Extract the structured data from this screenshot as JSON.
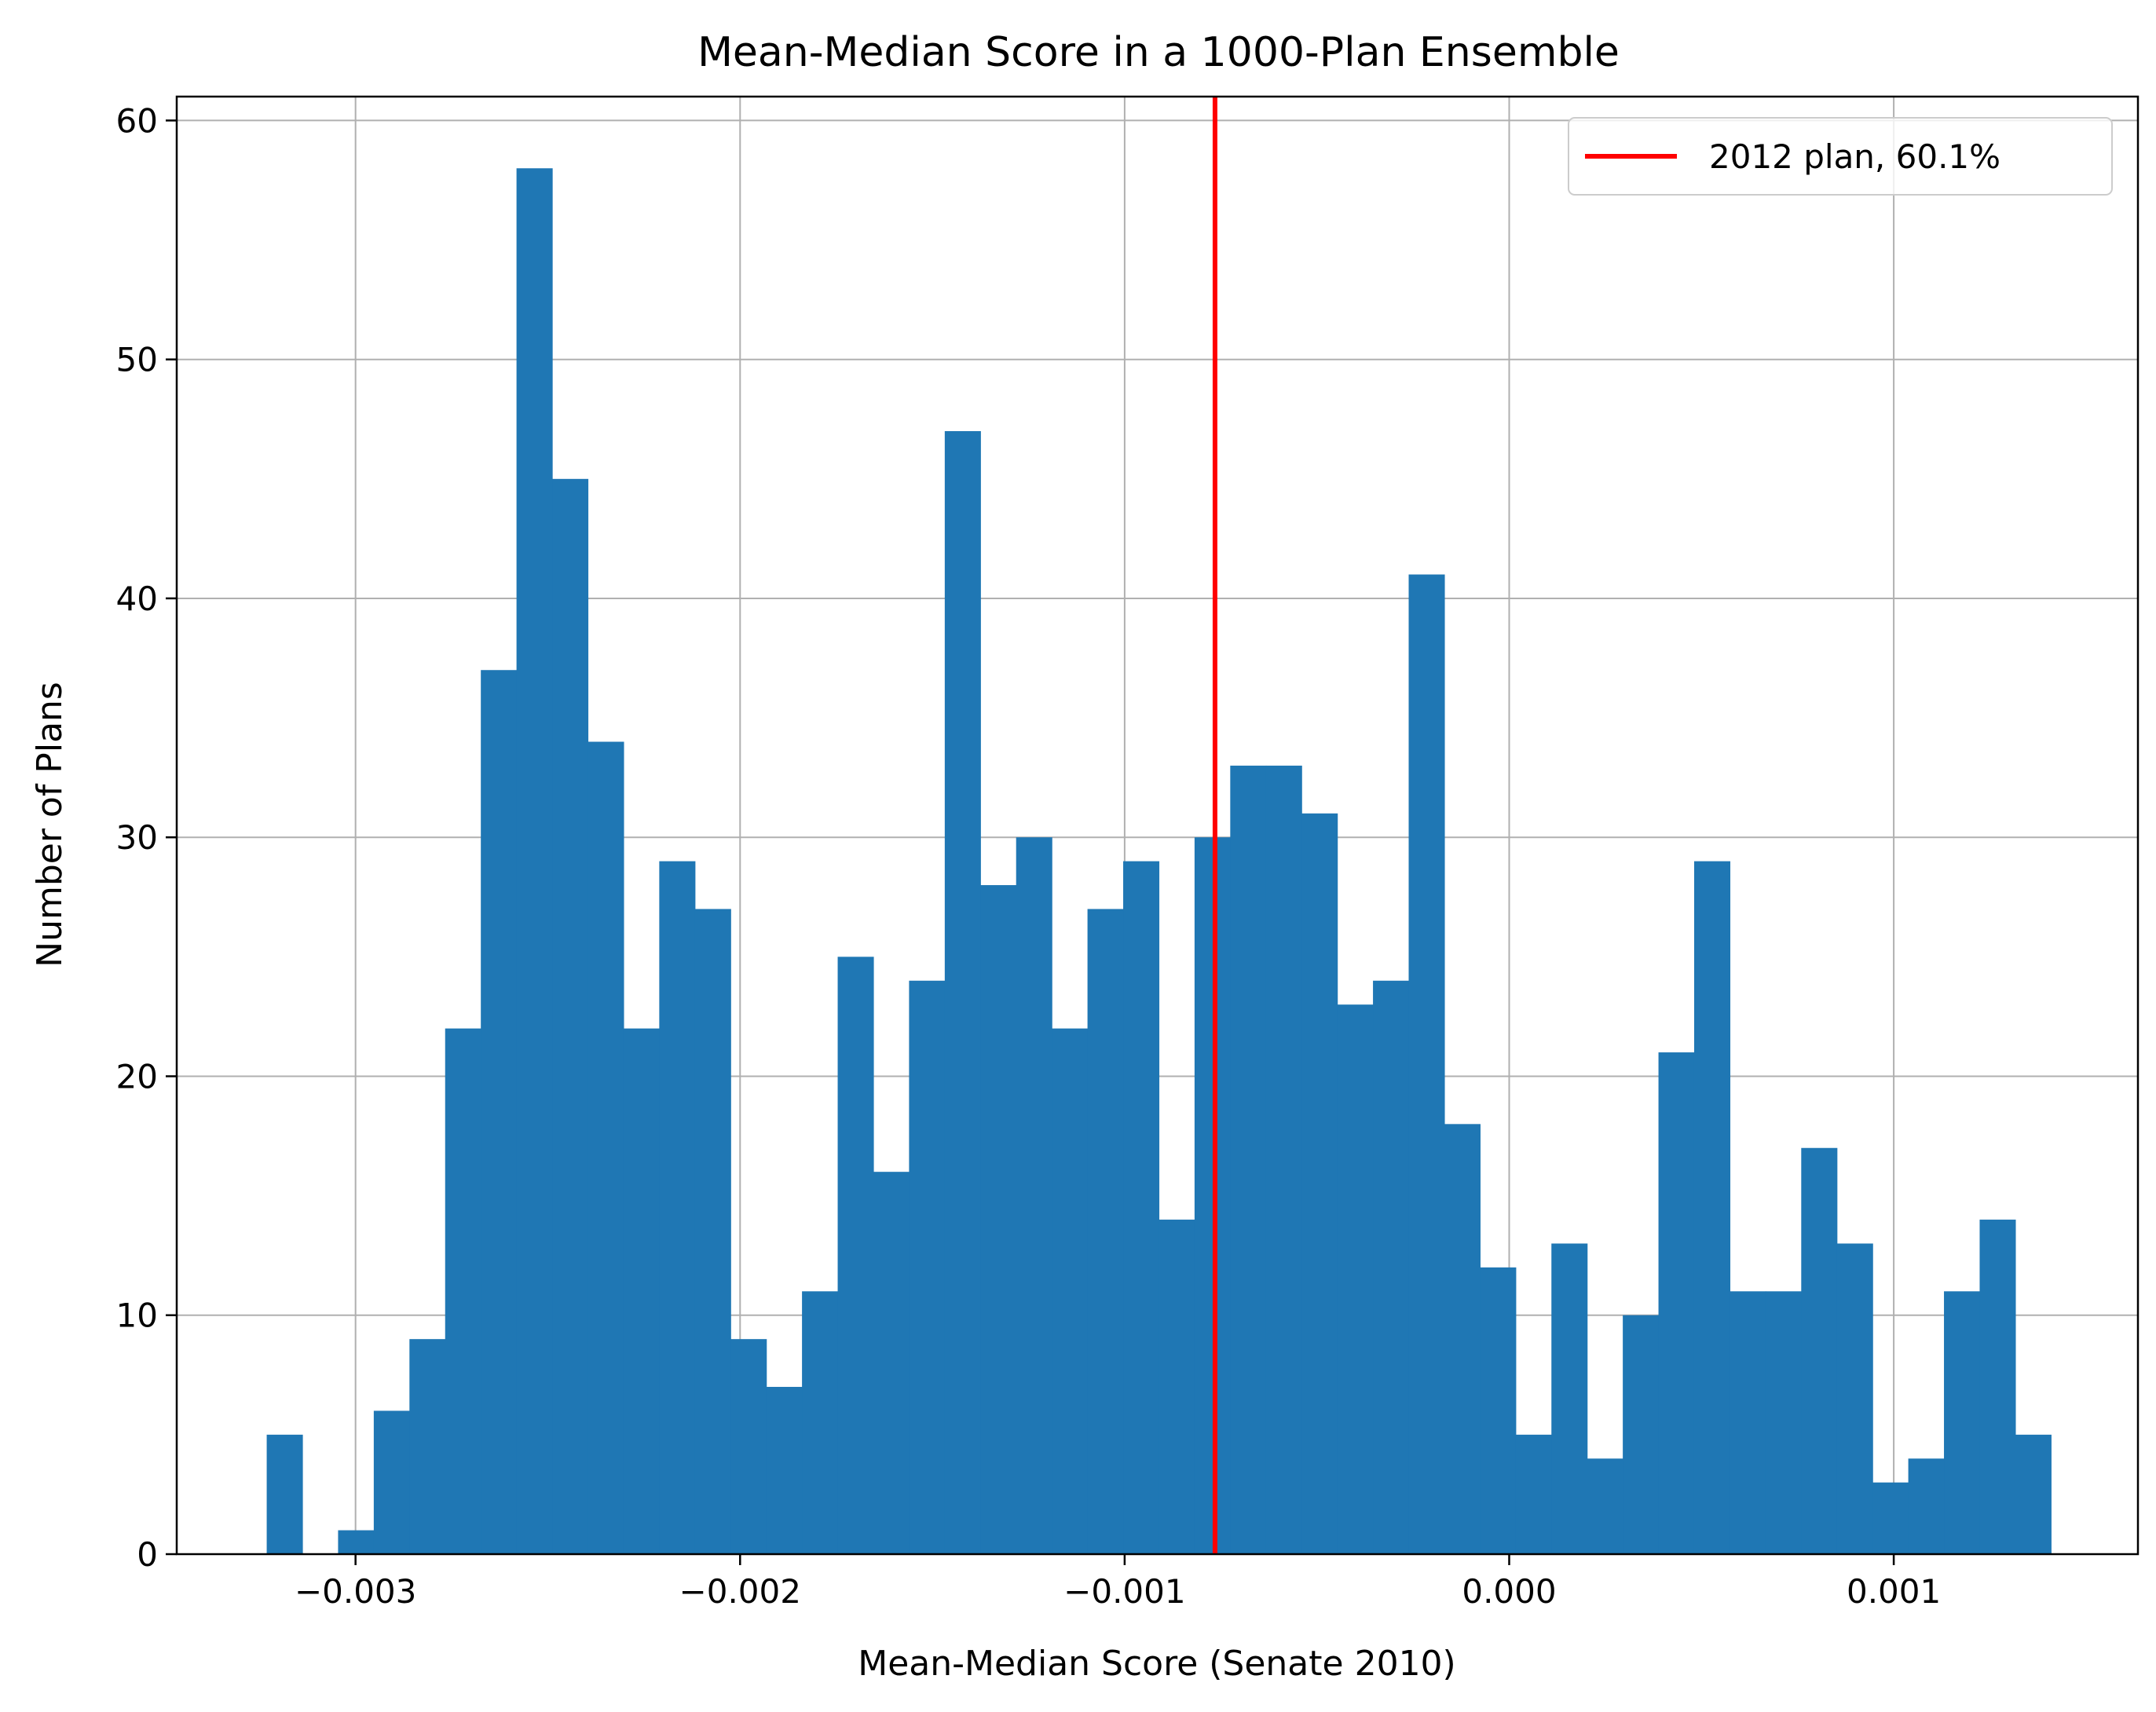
{
  "chart_data": {
    "type": "bar",
    "title": "Mean-Median Score in a 1000-Plan Ensemble",
    "xlabel": "Mean-Median Score (Senate 2010)",
    "ylabel": "Number of Plans",
    "xlim": [
      -0.003465,
      0.001635
    ],
    "ylim": [
      0,
      61
    ],
    "grid": true,
    "xticks": [
      -0.003,
      -0.002,
      -0.001,
      0.0,
      0.001
    ],
    "xtick_labels": [
      "−0.003",
      "−0.002",
      "−0.001",
      "0.000",
      "0.001"
    ],
    "yticks": [
      0,
      10,
      20,
      30,
      40,
      50,
      60
    ],
    "ytick_labels": [
      "0",
      "10",
      "20",
      "30",
      "40",
      "50",
      "60"
    ],
    "bin_start": -0.003231,
    "bin_width": 9.28e-05,
    "values": [
      5,
      0,
      1,
      6,
      9,
      22,
      37,
      58,
      45,
      34,
      22,
      29,
      27,
      9,
      7,
      11,
      25,
      16,
      24,
      47,
      28,
      30,
      22,
      27,
      29,
      14,
      30,
      33,
      33,
      31,
      23,
      24,
      41,
      18,
      12,
      5,
      13,
      4,
      10,
      21,
      29,
      11,
      11,
      17,
      13,
      3,
      4,
      11,
      14,
      5
    ],
    "bar_color": "#1f77b4",
    "reference_line": {
      "x": -0.000765,
      "color": "#ff0000",
      "label": "2012 plan, 60.1%"
    },
    "legend_position": "top-right"
  }
}
